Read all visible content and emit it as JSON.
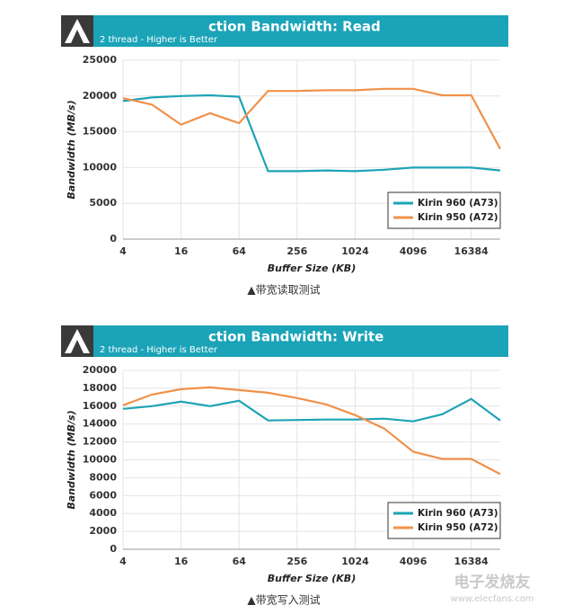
{
  "chart_data": [
    {
      "type": "line",
      "title": "ction Bandwidth: Read",
      "subtitle": "2 thread - Higher is Better",
      "x_label": "Buffer Size (KB)",
      "y_label": "Bandwidth (MB/s)",
      "caption": "▲带宽读取测试",
      "x": [
        4,
        8,
        16,
        32,
        64,
        128,
        256,
        512,
        1024,
        2048,
        4096,
        8192,
        16384,
        32768
      ],
      "xscale": "log",
      "xlim": [
        4,
        32768
      ],
      "xticks": [
        4,
        16,
        64,
        256,
        1024,
        4096,
        16384
      ],
      "ylim": [
        0,
        25000
      ],
      "yticks": [
        0,
        5000,
        10000,
        15000,
        20000,
        25000
      ],
      "grid": true,
      "legend": "lower right",
      "series": [
        {
          "name": "Kirin 960 (A73)",
          "color": "#1ea3b6",
          "values": [
            19300,
            19800,
            20000,
            20100,
            19900,
            9500,
            9500,
            9600,
            9500,
            9700,
            10000,
            10000,
            10000,
            9600
          ]
        },
        {
          "name": "Kirin 950 (A72)",
          "color": "#f0914a",
          "values": [
            19700,
            18800,
            16000,
            17600,
            16200,
            20700,
            20700,
            20800,
            20800,
            21000,
            21000,
            20100,
            20100,
            12600
          ]
        }
      ]
    },
    {
      "type": "line",
      "title": "ction Bandwidth: Write",
      "subtitle": "2 thread - Higher is Better",
      "x_label": "Buffer Size (KB)",
      "y_label": "Bandwidth (MB/s)",
      "caption": "▲带宽写入测试",
      "x": [
        4,
        8,
        16,
        32,
        64,
        128,
        256,
        512,
        1024,
        2048,
        4096,
        8192,
        16384,
        32768
      ],
      "xscale": "log",
      "xlim": [
        4,
        32768
      ],
      "xticks": [
        4,
        16,
        64,
        256,
        1024,
        4096,
        16384
      ],
      "ylim": [
        0,
        20000
      ],
      "yticks": [
        0,
        2000,
        4000,
        6000,
        8000,
        10000,
        12000,
        14000,
        16000,
        18000,
        20000
      ],
      "grid": true,
      "legend": "lower right",
      "series": [
        {
          "name": "Kirin 960 (A73)",
          "color": "#1ea3b6",
          "values": [
            15700,
            16000,
            16500,
            16000,
            16600,
            14400,
            14450,
            14500,
            14500,
            14600,
            14300,
            15100,
            16800,
            14400
          ]
        },
        {
          "name": "Kirin 950 (A72)",
          "color": "#f0914a",
          "values": [
            16100,
            17300,
            17900,
            18100,
            17800,
            17500,
            16900,
            16200,
            15000,
            13500,
            10900,
            10100,
            10100,
            8400
          ]
        }
      ]
    }
  ],
  "watermark": {
    "name": "电子发烧友",
    "url": "www.elecfans.com"
  }
}
